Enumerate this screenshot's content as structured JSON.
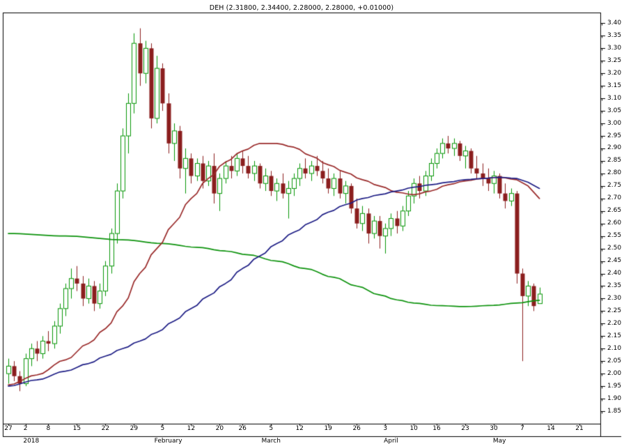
{
  "chart_data": {
    "type": "candlestick",
    "title": "DEH (2.31800, 2.34400, 2.28000, 2.28000, +0.01000)",
    "symbol": "DEH",
    "last_quote": {
      "open": 2.318,
      "high": 2.344,
      "low": 2.28,
      "close": 2.28,
      "change": "+0.01000"
    },
    "grid": "off",
    "legend": "none",
    "y_axis": {
      "side": "right",
      "min": 1.85,
      "max": 3.4,
      "step": 0.05,
      "scale_min": 1.8,
      "scale_max": 3.443,
      "format_decimals": 2
    },
    "x_axis": {
      "week_ticks": [
        {
          "label": "27",
          "i": 0
        },
        {
          "label": "2",
          "i": 3
        },
        {
          "label": "8",
          "i": 7
        },
        {
          "label": "15",
          "i": 12
        },
        {
          "label": "22",
          "i": 17
        },
        {
          "label": "29",
          "i": 22
        },
        {
          "label": "5",
          "i": 27
        },
        {
          "label": "12",
          "i": 32
        },
        {
          "label": "20",
          "i": 37
        },
        {
          "label": "26",
          "i": 41
        },
        {
          "label": "5",
          "i": 46
        },
        {
          "label": "12",
          "i": 51
        },
        {
          "label": "19",
          "i": 56
        },
        {
          "label": "26",
          "i": 61
        },
        {
          "label": "3",
          "i": 66
        },
        {
          "label": "10",
          "i": 71
        },
        {
          "label": "16",
          "i": 75
        },
        {
          "label": "23",
          "i": 80
        },
        {
          "label": "30",
          "i": 85
        },
        {
          "label": "7",
          "i": 90
        },
        {
          "label": "14",
          "i": 95
        },
        {
          "label": "21",
          "i": 100
        }
      ],
      "month_labels": [
        {
          "label": "2018",
          "i": 4
        },
        {
          "label": "February",
          "i": 28
        },
        {
          "label": "March",
          "i": 46
        },
        {
          "label": "April",
          "i": 67
        },
        {
          "label": "May",
          "i": 86
        }
      ]
    },
    "bars": [
      [
        2.0,
        2.06,
        1.96,
        2.03
      ],
      [
        2.03,
        2.05,
        1.97,
        1.99
      ],
      [
        1.99,
        2.01,
        1.93,
        1.96
      ],
      [
        1.96,
        2.08,
        1.95,
        2.06
      ],
      [
        2.06,
        2.12,
        2.03,
        2.1
      ],
      [
        2.1,
        2.13,
        2.05,
        2.08
      ],
      [
        2.08,
        2.15,
        2.06,
        2.13
      ],
      [
        2.13,
        2.17,
        2.09,
        2.12
      ],
      [
        2.12,
        2.21,
        2.1,
        2.19
      ],
      [
        2.19,
        2.28,
        2.16,
        2.26
      ],
      [
        2.26,
        2.36,
        2.23,
        2.34
      ],
      [
        2.34,
        2.42,
        2.3,
        2.38
      ],
      [
        2.38,
        2.43,
        2.33,
        2.36
      ],
      [
        2.36,
        2.39,
        2.27,
        2.3
      ],
      [
        2.3,
        2.38,
        2.28,
        2.35
      ],
      [
        2.35,
        2.37,
        2.25,
        2.28
      ],
      [
        2.28,
        2.36,
        2.26,
        2.33
      ],
      [
        2.33,
        2.45,
        2.31,
        2.43
      ],
      [
        2.43,
        2.58,
        2.4,
        2.56
      ],
      [
        2.56,
        2.76,
        2.52,
        2.73
      ],
      [
        2.73,
        2.98,
        2.7,
        2.95
      ],
      [
        2.95,
        3.12,
        2.88,
        3.08
      ],
      [
        3.08,
        3.36,
        3.04,
        3.32
      ],
      [
        3.32,
        3.38,
        3.15,
        3.2
      ],
      [
        3.2,
        3.33,
        3.16,
        3.3
      ],
      [
        3.3,
        3.32,
        2.98,
        3.02
      ],
      [
        3.02,
        3.27,
        3.0,
        3.22
      ],
      [
        3.22,
        3.24,
        3.05,
        3.08
      ],
      [
        3.08,
        3.12,
        2.88,
        2.92
      ],
      [
        2.92,
        3.0,
        2.85,
        2.97
      ],
      [
        2.97,
        2.99,
        2.78,
        2.82
      ],
      [
        2.82,
        2.9,
        2.72,
        2.86
      ],
      [
        2.86,
        2.88,
        2.76,
        2.79
      ],
      [
        2.79,
        2.86,
        2.77,
        2.84
      ],
      [
        2.84,
        2.87,
        2.74,
        2.77
      ],
      [
        2.77,
        2.85,
        2.75,
        2.83
      ],
      [
        2.83,
        2.88,
        2.68,
        2.72
      ],
      [
        2.72,
        2.8,
        2.65,
        2.78
      ],
      [
        2.78,
        2.85,
        2.76,
        2.83
      ],
      [
        2.83,
        2.87,
        2.78,
        2.81
      ],
      [
        2.81,
        2.88,
        2.79,
        2.86
      ],
      [
        2.86,
        2.89,
        2.8,
        2.83
      ],
      [
        2.83,
        2.87,
        2.78,
        2.8
      ],
      [
        2.8,
        2.85,
        2.77,
        2.83
      ],
      [
        2.83,
        2.84,
        2.74,
        2.76
      ],
      [
        2.76,
        2.82,
        2.73,
        2.79
      ],
      [
        2.79,
        2.81,
        2.71,
        2.73
      ],
      [
        2.73,
        2.78,
        2.69,
        2.76
      ],
      [
        2.76,
        2.8,
        2.7,
        2.72
      ],
      [
        2.72,
        2.77,
        2.62,
        2.74
      ],
      [
        2.74,
        2.8,
        2.71,
        2.78
      ],
      [
        2.78,
        2.84,
        2.75,
        2.82
      ],
      [
        2.82,
        2.86,
        2.78,
        2.8
      ],
      [
        2.8,
        2.85,
        2.77,
        2.83
      ],
      [
        2.83,
        2.87,
        2.79,
        2.81
      ],
      [
        2.81,
        2.85,
        2.76,
        2.78
      ],
      [
        2.78,
        2.82,
        2.72,
        2.74
      ],
      [
        2.74,
        2.8,
        2.71,
        2.78
      ],
      [
        2.78,
        2.81,
        2.7,
        2.72
      ],
      [
        2.72,
        2.77,
        2.68,
        2.75
      ],
      [
        2.75,
        2.76,
        2.64,
        2.66
      ],
      [
        2.66,
        2.7,
        2.58,
        2.6
      ],
      [
        2.6,
        2.67,
        2.57,
        2.64
      ],
      [
        2.64,
        2.66,
        2.52,
        2.56
      ],
      [
        2.56,
        2.63,
        2.54,
        2.61
      ],
      [
        2.61,
        2.63,
        2.5,
        2.55
      ],
      [
        2.55,
        2.6,
        2.48,
        2.58
      ],
      [
        2.58,
        2.64,
        2.55,
        2.62
      ],
      [
        2.62,
        2.65,
        2.56,
        2.59
      ],
      [
        2.59,
        2.67,
        2.57,
        2.65
      ],
      [
        2.65,
        2.73,
        2.63,
        2.71
      ],
      [
        2.71,
        2.78,
        2.68,
        2.76
      ],
      [
        2.76,
        2.79,
        2.7,
        2.73
      ],
      [
        2.73,
        2.81,
        2.71,
        2.79
      ],
      [
        2.79,
        2.86,
        2.77,
        2.84
      ],
      [
        2.84,
        2.9,
        2.82,
        2.88
      ],
      [
        2.88,
        2.94,
        2.86,
        2.92
      ],
      [
        2.92,
        2.95,
        2.88,
        2.9
      ],
      [
        2.9,
        2.94,
        2.87,
        2.92
      ],
      [
        2.92,
        2.93,
        2.85,
        2.87
      ],
      [
        2.87,
        2.91,
        2.82,
        2.89
      ],
      [
        2.89,
        2.9,
        2.8,
        2.82
      ],
      [
        2.82,
        2.87,
        2.78,
        2.8
      ],
      [
        2.8,
        2.84,
        2.75,
        2.78
      ],
      [
        2.78,
        2.82,
        2.73,
        2.76
      ],
      [
        2.76,
        2.81,
        2.72,
        2.79
      ],
      [
        2.79,
        2.8,
        2.7,
        2.72
      ],
      [
        2.72,
        2.76,
        2.66,
        2.69
      ],
      [
        2.69,
        2.74,
        2.67,
        2.72
      ],
      [
        2.72,
        2.73,
        2.36,
        2.4
      ],
      [
        2.4,
        2.42,
        2.05,
        2.31
      ],
      [
        2.31,
        2.37,
        2.27,
        2.35
      ],
      [
        2.35,
        2.36,
        2.25,
        2.27
      ],
      [
        2.318,
        2.344,
        2.28,
        2.28
      ]
    ],
    "moving_averages": [
      {
        "name": "long-ma",
        "color": "#0d930d",
        "anchors": [
          [
            0,
            2.56
          ],
          [
            10,
            2.55
          ],
          [
            20,
            2.535
          ],
          [
            27,
            2.52
          ],
          [
            33,
            2.505
          ],
          [
            38,
            2.49
          ],
          [
            42,
            2.475
          ],
          [
            47,
            2.45
          ],
          [
            52,
            2.42
          ],
          [
            57,
            2.385
          ],
          [
            61,
            2.35
          ],
          [
            65,
            2.315
          ],
          [
            68,
            2.295
          ],
          [
            71,
            2.282
          ],
          [
            75,
            2.272
          ],
          [
            80,
            2.268
          ],
          [
            85,
            2.273
          ],
          [
            89,
            2.282
          ],
          [
            93,
            2.293
          ]
        ]
      },
      {
        "name": "fast-ma",
        "color": "#9a2a2a",
        "anchors": [
          [
            0,
            1.955
          ],
          [
            5,
            1.995
          ],
          [
            10,
            2.055
          ],
          [
            14,
            2.12
          ],
          [
            17,
            2.18
          ],
          [
            20,
            2.27
          ],
          [
            23,
            2.4
          ],
          [
            26,
            2.5
          ],
          [
            29,
            2.6
          ],
          [
            32,
            2.7
          ],
          [
            35,
            2.78
          ],
          [
            38,
            2.845
          ],
          [
            41,
            2.89
          ],
          [
            44,
            2.92
          ],
          [
            47,
            2.92
          ],
          [
            50,
            2.905
          ],
          [
            53,
            2.87
          ],
          [
            56,
            2.835
          ],
          [
            59,
            2.805
          ],
          [
            62,
            2.775
          ],
          [
            65,
            2.75
          ],
          [
            68,
            2.725
          ],
          [
            71,
            2.715
          ],
          [
            74,
            2.73
          ],
          [
            77,
            2.755
          ],
          [
            80,
            2.77
          ],
          [
            83,
            2.78
          ],
          [
            86,
            2.785
          ],
          [
            89,
            2.775
          ],
          [
            91,
            2.75
          ],
          [
            93,
            2.7
          ]
        ]
      },
      {
        "name": "medium-ma",
        "color": "#1d1d85",
        "anchors": [
          [
            0,
            1.95
          ],
          [
            5,
            1.975
          ],
          [
            10,
            2.01
          ],
          [
            14,
            2.04
          ],
          [
            17,
            2.07
          ],
          [
            20,
            2.1
          ],
          [
            23,
            2.13
          ],
          [
            26,
            2.165
          ],
          [
            29,
            2.21
          ],
          [
            32,
            2.26
          ],
          [
            35,
            2.31
          ],
          [
            38,
            2.36
          ],
          [
            41,
            2.42
          ],
          [
            44,
            2.47
          ],
          [
            47,
            2.52
          ],
          [
            50,
            2.565
          ],
          [
            53,
            2.605
          ],
          [
            56,
            2.645
          ],
          [
            59,
            2.675
          ],
          [
            62,
            2.7
          ],
          [
            65,
            2.715
          ],
          [
            68,
            2.73
          ],
          [
            71,
            2.745
          ],
          [
            74,
            2.755
          ],
          [
            77,
            2.765
          ],
          [
            80,
            2.775
          ],
          [
            83,
            2.78
          ],
          [
            86,
            2.785
          ],
          [
            89,
            2.78
          ],
          [
            91,
            2.765
          ],
          [
            93,
            2.74
          ]
        ]
      }
    ],
    "colors": {
      "up": "#069606",
      "down": "#8b1e1e",
      "background": "#ffffff",
      "border": "#000000",
      "text": "#000000"
    }
  }
}
